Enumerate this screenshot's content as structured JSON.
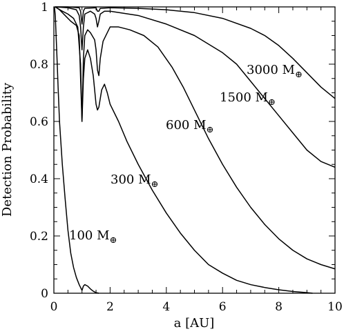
{
  "chart_data": {
    "type": "line",
    "xlabel": "a [AU]",
    "ylabel": "Detection Probability",
    "xlim": [
      0,
      10
    ],
    "ylim": [
      0,
      1
    ],
    "x_ticks": [
      "0",
      "2",
      "4",
      "6",
      "8",
      "10"
    ],
    "y_ticks": [
      "0",
      "0.2",
      "0.4",
      "0.6",
      "0.8",
      "1"
    ],
    "grid": false,
    "legend": "none",
    "line_color": "#000000",
    "series": [
      {
        "label_value": "3000",
        "label_unit": "M",
        "label_subscript": "⊕",
        "points": [
          [
            0.05,
            1.0
          ],
          [
            0.5,
            1.0
          ],
          [
            0.9,
            0.997
          ],
          [
            0.95,
            0.985
          ],
          [
            1.0,
            0.94
          ],
          [
            1.05,
            0.985
          ],
          [
            1.1,
            0.995
          ],
          [
            1.5,
            0.997
          ],
          [
            1.55,
            0.985
          ],
          [
            1.6,
            0.985
          ],
          [
            1.65,
            0.995
          ],
          [
            2.0,
            0.997
          ],
          [
            3.0,
            0.995
          ],
          [
            4.0,
            0.99
          ],
          [
            5.0,
            0.98
          ],
          [
            6.0,
            0.96
          ],
          [
            7.0,
            0.925
          ],
          [
            7.5,
            0.9
          ],
          [
            8.0,
            0.865
          ],
          [
            8.5,
            0.82
          ],
          [
            9.0,
            0.77
          ],
          [
            9.5,
            0.72
          ],
          [
            10.0,
            0.68
          ]
        ]
      },
      {
        "label_value": "1500",
        "label_unit": "M",
        "label_subscript": "⊕",
        "points": [
          [
            0.05,
            1.0
          ],
          [
            0.5,
            0.997
          ],
          [
            0.8,
            0.99
          ],
          [
            0.9,
            0.97
          ],
          [
            0.95,
            0.93
          ],
          [
            1.0,
            0.85
          ],
          [
            1.05,
            0.93
          ],
          [
            1.1,
            0.975
          ],
          [
            1.3,
            0.985
          ],
          [
            1.45,
            0.975
          ],
          [
            1.5,
            0.96
          ],
          [
            1.55,
            0.93
          ],
          [
            1.6,
            0.95
          ],
          [
            1.65,
            0.975
          ],
          [
            1.8,
            0.985
          ],
          [
            2.0,
            0.985
          ],
          [
            3.0,
            0.97
          ],
          [
            4.0,
            0.94
          ],
          [
            5.0,
            0.9
          ],
          [
            6.0,
            0.84
          ],
          [
            6.5,
            0.8
          ],
          [
            7.0,
            0.74
          ],
          [
            7.5,
            0.68
          ],
          [
            8.0,
            0.62
          ],
          [
            8.5,
            0.56
          ],
          [
            9.0,
            0.5
          ],
          [
            9.5,
            0.46
          ],
          [
            10.0,
            0.44
          ]
        ]
      },
      {
        "label_value": "600",
        "label_unit": "M",
        "label_subscript": "⊕",
        "points": [
          [
            0.05,
            1.0
          ],
          [
            0.3,
            0.985
          ],
          [
            0.5,
            0.975
          ],
          [
            0.7,
            0.96
          ],
          [
            0.85,
            0.93
          ],
          [
            0.95,
            0.8
          ],
          [
            1.0,
            0.6
          ],
          [
            1.05,
            0.82
          ],
          [
            1.1,
            0.9
          ],
          [
            1.2,
            0.92
          ],
          [
            1.3,
            0.91
          ],
          [
            1.45,
            0.885
          ],
          [
            1.5,
            0.85
          ],
          [
            1.55,
            0.78
          ],
          [
            1.6,
            0.76
          ],
          [
            1.65,
            0.82
          ],
          [
            1.75,
            0.88
          ],
          [
            1.9,
            0.91
          ],
          [
            2.0,
            0.93
          ],
          [
            2.3,
            0.93
          ],
          [
            2.7,
            0.92
          ],
          [
            3.2,
            0.9
          ],
          [
            3.7,
            0.86
          ],
          [
            4.2,
            0.79
          ],
          [
            4.6,
            0.72
          ],
          [
            5.0,
            0.64
          ],
          [
            5.5,
            0.54
          ],
          [
            6.0,
            0.45
          ],
          [
            6.5,
            0.37
          ],
          [
            7.0,
            0.3
          ],
          [
            7.5,
            0.24
          ],
          [
            8.0,
            0.19
          ],
          [
            8.5,
            0.15
          ],
          [
            9.0,
            0.12
          ],
          [
            9.5,
            0.1
          ],
          [
            10.0,
            0.085
          ]
        ]
      },
      {
        "label_value": "300",
        "label_unit": "M",
        "label_subscript": "⊕",
        "points": [
          [
            0.05,
            1.0
          ],
          [
            0.2,
            0.99
          ],
          [
            0.4,
            0.97
          ],
          [
            0.6,
            0.95
          ],
          [
            0.8,
            0.935
          ],
          [
            0.9,
            0.9
          ],
          [
            0.95,
            0.75
          ],
          [
            1.0,
            0.6
          ],
          [
            1.05,
            0.75
          ],
          [
            1.1,
            0.82
          ],
          [
            1.2,
            0.85
          ],
          [
            1.3,
            0.82
          ],
          [
            1.4,
            0.76
          ],
          [
            1.5,
            0.66
          ],
          [
            1.55,
            0.64
          ],
          [
            1.6,
            0.65
          ],
          [
            1.7,
            0.71
          ],
          [
            1.8,
            0.73
          ],
          [
            1.9,
            0.7
          ],
          [
            2.0,
            0.66
          ],
          [
            2.3,
            0.6
          ],
          [
            2.6,
            0.53
          ],
          [
            3.0,
            0.45
          ],
          [
            3.5,
            0.36
          ],
          [
            4.0,
            0.28
          ],
          [
            4.5,
            0.21
          ],
          [
            5.0,
            0.15
          ],
          [
            5.5,
            0.1
          ],
          [
            6.0,
            0.07
          ],
          [
            6.5,
            0.045
          ],
          [
            7.0,
            0.03
          ],
          [
            7.5,
            0.02
          ],
          [
            8.0,
            0.012
          ],
          [
            8.5,
            0.006
          ],
          [
            9.0,
            0.002
          ],
          [
            9.2,
            0.0
          ]
        ]
      },
      {
        "label_value": "100",
        "label_unit": "M",
        "label_subscript": "⊕",
        "points": [
          [
            0.02,
            1.0
          ],
          [
            0.05,
            0.97
          ],
          [
            0.1,
            0.85
          ],
          [
            0.15,
            0.72
          ],
          [
            0.2,
            0.6
          ],
          [
            0.3,
            0.45
          ],
          [
            0.4,
            0.33
          ],
          [
            0.5,
            0.22
          ],
          [
            0.6,
            0.14
          ],
          [
            0.7,
            0.09
          ],
          [
            0.8,
            0.055
          ],
          [
            0.9,
            0.03
          ],
          [
            0.95,
            0.02
          ],
          [
            1.0,
            0.01
          ],
          [
            1.05,
            0.025
          ],
          [
            1.1,
            0.03
          ],
          [
            1.2,
            0.025
          ],
          [
            1.3,
            0.015
          ],
          [
            1.4,
            0.007
          ],
          [
            1.5,
            0.002
          ],
          [
            1.6,
            0.0
          ]
        ]
      }
    ]
  }
}
